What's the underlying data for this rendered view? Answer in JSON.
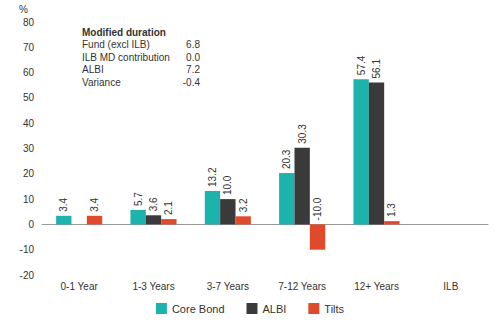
{
  "chart_data": {
    "type": "bar",
    "y_label": "%",
    "categories": [
      "0-1 Year",
      "1-3 Years",
      "3-7 Years",
      "7-12 Years",
      "12+ Years",
      "ILB"
    ],
    "series": [
      {
        "name": "Core Bond",
        "color": "#1bb3ac",
        "values": [
          3.4,
          5.7,
          13.2,
          20.3,
          57.4,
          null
        ]
      },
      {
        "name": "ALBI",
        "color": "#3a3a3a",
        "values": [
          null,
          3.6,
          10,
          30.3,
          56.1,
          null
        ],
        "value_labels": [
          null,
          "3.6",
          "10.0",
          "30.3",
          "56.1",
          null
        ]
      },
      {
        "name": "Tilts",
        "color": "#e04a2a",
        "values": [
          3.4,
          2.1,
          3.2,
          -10,
          1.3,
          null
        ],
        "value_labels": [
          "3.4",
          "2.1",
          "3.2",
          "-10.0",
          "1.3",
          null
        ]
      }
    ],
    "ylim": [
      -20,
      80
    ],
    "yticks": [
      -20,
      -10,
      0,
      10,
      20,
      30,
      40,
      50,
      60,
      70,
      80
    ],
    "grid": false,
    "legend": "bottom",
    "data_labels": true,
    "annotation": {
      "title": "Modified duration",
      "rows": [
        {
          "label": "Fund (excl ILB)",
          "value": 6.8
        },
        {
          "label": "ILB MD contribution",
          "value": 0,
          "value_label": "0.0"
        },
        {
          "label": "ALBI",
          "value": 7.2
        },
        {
          "label": "Variance",
          "value": -0.4
        }
      ]
    }
  }
}
